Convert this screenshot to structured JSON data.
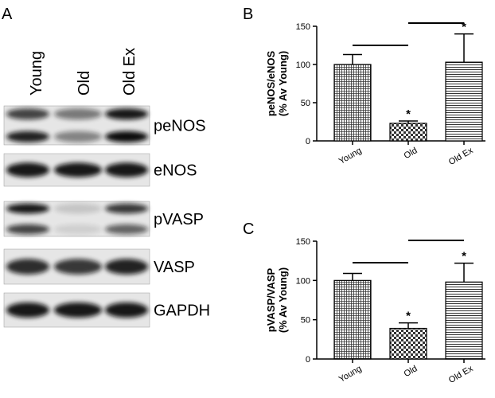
{
  "blot": {
    "panel_label": "A",
    "lanes": [
      "Young",
      "Old",
      "Old Ex"
    ],
    "bands": [
      "peNOS",
      "eNOS",
      "pVASP",
      "VASP",
      "GAPDH"
    ]
  },
  "chart_data": [
    {
      "type": "bar",
      "panel_label": "B",
      "ylabel": [
        "peNOS/eNOS",
        "(% Av Young)"
      ],
      "categories": [
        "Young",
        "Old",
        "Old Ex"
      ],
      "series": [
        {
          "values": [
            100,
            23,
            103
          ],
          "errors": [
            13,
            3,
            37
          ],
          "annotations": [
            null,
            "*",
            "*"
          ]
        }
      ],
      "ylim": [
        0,
        150
      ],
      "yticks": [
        0,
        50,
        100,
        150
      ]
    },
    {
      "type": "bar",
      "panel_label": "C",
      "ylabel": [
        "pVASP/VASP",
        "(% Av Young)"
      ],
      "categories": [
        "Young",
        "Old",
        "Old Ex"
      ],
      "series": [
        {
          "values": [
            100,
            39,
            98
          ],
          "errors": [
            9,
            7,
            24
          ],
          "annotations": [
            null,
            "*",
            "*"
          ]
        }
      ],
      "ylim": [
        0,
        150
      ],
      "yticks": [
        0,
        50,
        100,
        150
      ]
    }
  ]
}
